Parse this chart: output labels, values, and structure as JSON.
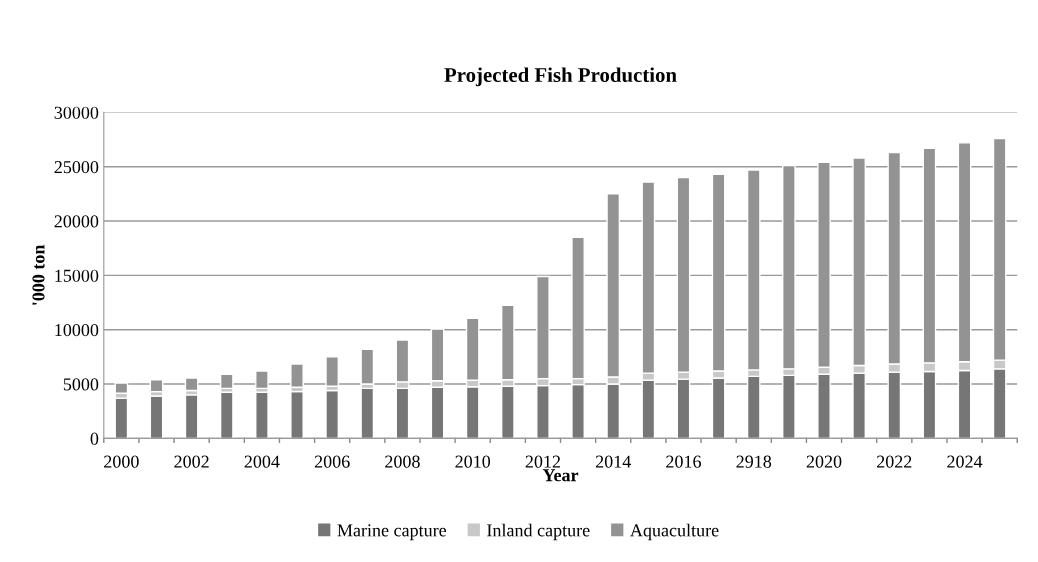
{
  "chart_data": {
    "type": "bar",
    "title": "Projected Fish Production",
    "xlabel": "Year",
    "ylabel": "'000 ton",
    "categories": [
      "2000",
      null,
      "2002",
      null,
      "2004",
      null,
      "2006",
      null,
      "2008",
      null,
      "2010",
      null,
      "2012",
      null,
      "2014",
      null,
      "2016",
      null,
      "2918",
      null,
      "2020",
      null,
      "2022",
      null,
      "2024",
      null
    ],
    "stacked": true,
    "series": [
      {
        "name": "Marine capture",
        "color": "#767676",
        "values": [
          3700,
          3900,
          4000,
          4250,
          4250,
          4300,
          4400,
          4600,
          4600,
          4700,
          4750,
          4800,
          4850,
          4950,
          5000,
          5350,
          5450,
          5550,
          5700,
          5800,
          5900,
          6000,
          6100,
          6150,
          6250,
          6400
        ]
      },
      {
        "name": "Inland capture",
        "color": "#c8c8c8",
        "values": [
          450,
          400,
          400,
          350,
          350,
          400,
          400,
          400,
          600,
          600,
          600,
          600,
          650,
          550,
          650,
          650,
          650,
          650,
          600,
          600,
          650,
          700,
          750,
          800,
          800,
          800
        ]
      },
      {
        "name": "Aquaculture",
        "color": "#939393",
        "values": [
          950,
          1100,
          1150,
          1300,
          1600,
          2150,
          2700,
          3200,
          3850,
          4750,
          5700,
          6850,
          9400,
          13000,
          16850,
          17600,
          17900,
          18100,
          18400,
          18700,
          18850,
          19100,
          19450,
          19750,
          20150,
          20400
        ]
      }
    ],
    "ylim": [
      0,
      30000
    ],
    "yticks": [
      0,
      5000,
      10000,
      15000,
      20000,
      25000,
      30000
    ],
    "grid": "y",
    "legend": "bottom"
  }
}
